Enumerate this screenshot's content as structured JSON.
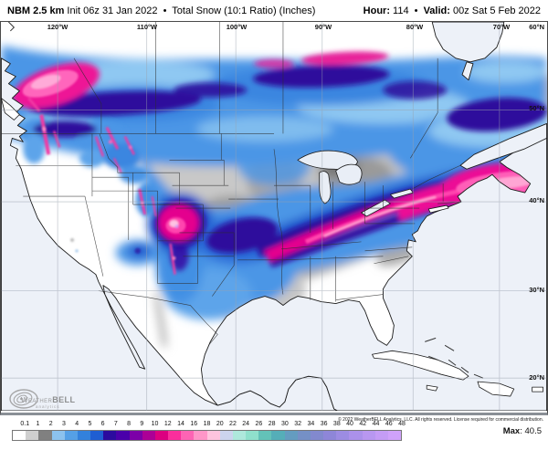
{
  "header": {
    "model": "NBM 2.5 km",
    "init": "Init 06z 31 Jan 2022",
    "separator": "•",
    "product": "Total Snow (10:1 Ratio) (Inches)",
    "hour_label": "Hour:",
    "hour_value": "114",
    "valid_label": "Valid:",
    "valid_value": "00z Sat 5 Feb 2022"
  },
  "map": {
    "longitude_labels": [
      "120°W",
      "110°W",
      "100°W",
      "90°W",
      "80°W",
      "70°W"
    ],
    "latitude_labels": [
      "60°N",
      "50°N",
      "40°N",
      "30°N",
      "20°N"
    ],
    "logo": {
      "text1": "Weather",
      "text2": "BELL",
      "sub": "analytics"
    }
  },
  "legend": {
    "ticks": [
      "0.1",
      "1",
      "2",
      "3",
      "4",
      "5",
      "6",
      "7",
      "8",
      "9",
      "10",
      "12",
      "14",
      "16",
      "18",
      "20",
      "22",
      "24",
      "26",
      "28",
      "30",
      "32",
      "34",
      "36",
      "38",
      "40",
      "42",
      "44",
      "46",
      "48"
    ],
    "colors": [
      "#ffffff",
      "#cfcfcf",
      "#808080",
      "#8cc2ee",
      "#55a0e6",
      "#3381dc",
      "#1f5ed2",
      "#2b0b9e",
      "#4a00aa",
      "#7c00a8",
      "#ac0096",
      "#dc0080",
      "#fa2e9c",
      "#fd64b4",
      "#fe96c8",
      "#fec4de",
      "#ccd4ee",
      "#aee8dc",
      "#8fe0cc",
      "#63c2b8",
      "#55aeb8",
      "#649cc0",
      "#7590c6",
      "#8289ce",
      "#8e86d8",
      "#9c8ce2",
      "#ab91ea",
      "#b897f0",
      "#c49cf5",
      "#cfa2fa"
    ],
    "units": "Inches",
    "max_label": "Max",
    "max_value": "40.5",
    "copyright": "© 2022 WeatherBELL Analytics, LLC. All rights reserved. License required for commercial distribution."
  }
}
